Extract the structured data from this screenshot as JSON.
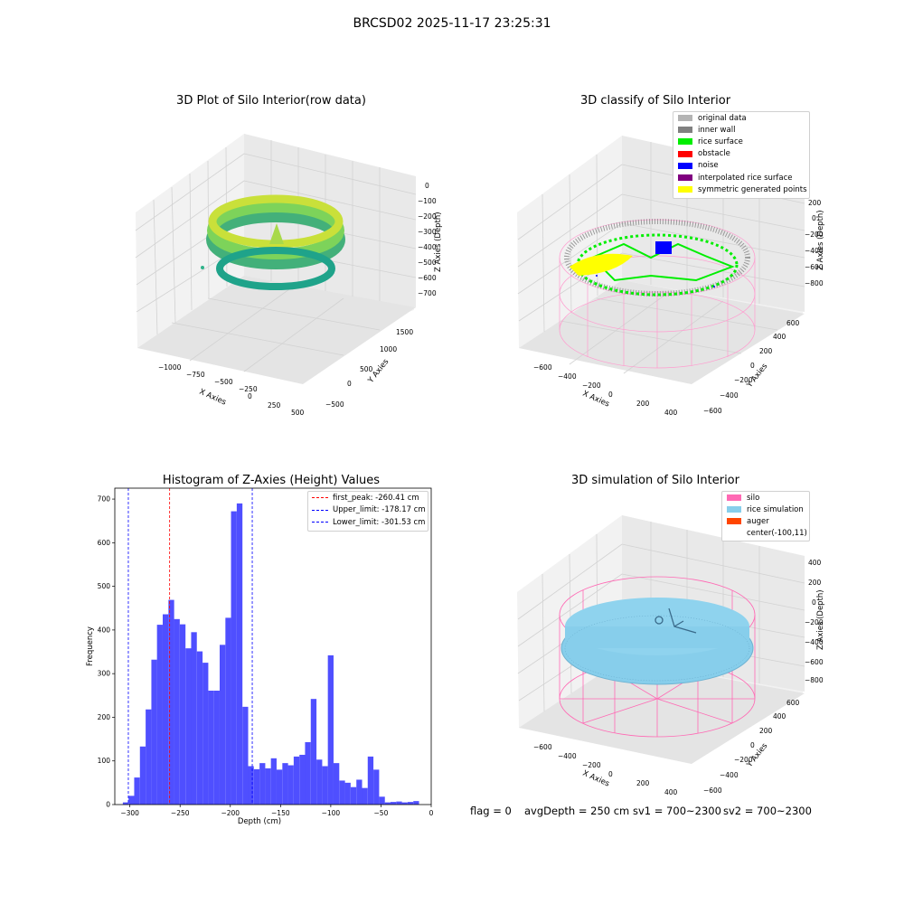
{
  "figure": {
    "suptitle": "BRCSD02 2025-11-17 23:25:31",
    "bottom_info": {
      "flag": "flag = 0",
      "avg_depth": "avgDepth = 250 cm",
      "sv1": "sv1 = 700~2300",
      "sv2": "sv2 = 700~2300"
    }
  },
  "panels": {
    "raw": {
      "title": "3D Plot of Silo Interior(row data)",
      "xlabel": "X Axies",
      "ylabel": "Y Axies",
      "zlabel": "Z Axies (Depth)",
      "x_ticks": [
        "−1000",
        "−750",
        "−500",
        "−250",
        "0",
        "250",
        "500"
      ],
      "y_ticks": [
        "−500",
        "0",
        "500",
        "1000",
        "1500"
      ],
      "z_ticks": [
        "0",
        "−100",
        "−200",
        "−300",
        "−400",
        "−500",
        "−600",
        "−700"
      ]
    },
    "classify": {
      "title": "3D classify of Silo Interior",
      "xlabel": "X Axies",
      "ylabel": "Y Axies",
      "zlabel": "Z Axies (Depth)",
      "x_ticks": [
        "−600",
        "−400",
        "−200",
        "0",
        "200",
        "400"
      ],
      "y_ticks": [
        "−600",
        "−400",
        "−200",
        "0",
        "200",
        "400",
        "600"
      ],
      "z_ticks": [
        "200",
        "0",
        "−200",
        "−400",
        "−600",
        "−800"
      ],
      "legend": [
        {
          "label": "original data",
          "color": "#b4b4b4"
        },
        {
          "label": "inner wall",
          "color": "#808080"
        },
        {
          "label": "rice surface",
          "color": "#00ee00"
        },
        {
          "label": "obstacle",
          "color": "#ff0000"
        },
        {
          "label": "noise",
          "color": "#0000ff"
        },
        {
          "label": "interpolated rice surface",
          "color": "#800080"
        },
        {
          "label": "symmetric generated points",
          "color": "#ffff00"
        }
      ]
    },
    "simulation": {
      "title": "3D simulation of Silo Interior",
      "xlabel": "X Axies",
      "ylabel": "Y Axies",
      "zlabel": "Z Axies (Depth)",
      "x_ticks": [
        "−600",
        "−400",
        "−200",
        "0",
        "200",
        "400"
      ],
      "y_ticks": [
        "−600",
        "−400",
        "−200",
        "0",
        "200",
        "400",
        "600"
      ],
      "z_ticks": [
        "400",
        "200",
        "0",
        "−200",
        "−400",
        "−600",
        "−800"
      ],
      "legend": [
        {
          "label": "silo",
          "color": "#ff69b4"
        },
        {
          "label": "rice simulation",
          "color": "#87ceeb"
        },
        {
          "label": "auger",
          "color": "#ff4500"
        },
        {
          "label": "center(-100,11)",
          "color": ""
        }
      ]
    }
  },
  "chart_data": {
    "type": "bar",
    "title": "Histogram of Z-Axies (Height) Values",
    "xlabel": "Depth (cm)",
    "ylabel": "Frequency",
    "xlim": [
      -315,
      0
    ],
    "ylim": [
      0,
      725
    ],
    "x_ticks": [
      -300,
      -250,
      -200,
      -150,
      -100,
      -50,
      0
    ],
    "y_ticks": [
      0,
      100,
      200,
      300,
      400,
      500,
      600,
      700
    ],
    "bar_color": "#4b4bff",
    "bins": [
      [
        -307.0,
        5
      ],
      [
        -301.3,
        20
      ],
      [
        -295.7,
        62
      ],
      [
        -290.0,
        133
      ],
      [
        -284.3,
        218
      ],
      [
        -278.6,
        332
      ],
      [
        -273.0,
        412
      ],
      [
        -267.3,
        436
      ],
      [
        -261.6,
        469
      ],
      [
        -256.0,
        425
      ],
      [
        -250.3,
        413
      ],
      [
        -244.6,
        358
      ],
      [
        -239.0,
        395
      ],
      [
        -233.3,
        351
      ],
      [
        -227.6,
        325
      ],
      [
        -222.0,
        261
      ],
      [
        -216.3,
        261
      ],
      [
        -210.6,
        366
      ],
      [
        -204.9,
        428
      ],
      [
        -199.3,
        672
      ],
      [
        -193.6,
        690
      ],
      [
        -187.9,
        224
      ],
      [
        -182.3,
        88
      ],
      [
        -176.6,
        81
      ],
      [
        -170.9,
        95
      ],
      [
        -165.3,
        83
      ],
      [
        -159.6,
        106
      ],
      [
        -153.9,
        80
      ],
      [
        -148.2,
        95
      ],
      [
        -142.6,
        90
      ],
      [
        -136.9,
        110
      ],
      [
        -131.2,
        114
      ],
      [
        -125.6,
        143
      ],
      [
        -119.9,
        242
      ],
      [
        -114.2,
        103
      ],
      [
        -108.5,
        88
      ],
      [
        -102.9,
        342
      ],
      [
        -97.2,
        95
      ],
      [
        -91.5,
        55
      ],
      [
        -85.9,
        50
      ],
      [
        -80.2,
        40
      ],
      [
        -74.5,
        57
      ],
      [
        -68.9,
        38
      ],
      [
        -63.2,
        110
      ],
      [
        -57.5,
        80
      ],
      [
        -51.8,
        18
      ],
      [
        -46.2,
        5
      ],
      [
        -40.5,
        6
      ],
      [
        -34.8,
        7
      ],
      [
        -29.2,
        5
      ],
      [
        -23.5,
        6
      ],
      [
        -17.8,
        8
      ]
    ],
    "bin_width": 5.67,
    "lines": [
      {
        "label": "first_peak: -260.41 cm",
        "x": -260.41,
        "color": "#ff0000"
      },
      {
        "label": "Upper_limit: -178.17 cm",
        "x": -178.17,
        "color": "#0000ff"
      },
      {
        "label": "Lower_limit: -301.53 cm",
        "x": -301.53,
        "color": "#0000ff"
      }
    ]
  }
}
